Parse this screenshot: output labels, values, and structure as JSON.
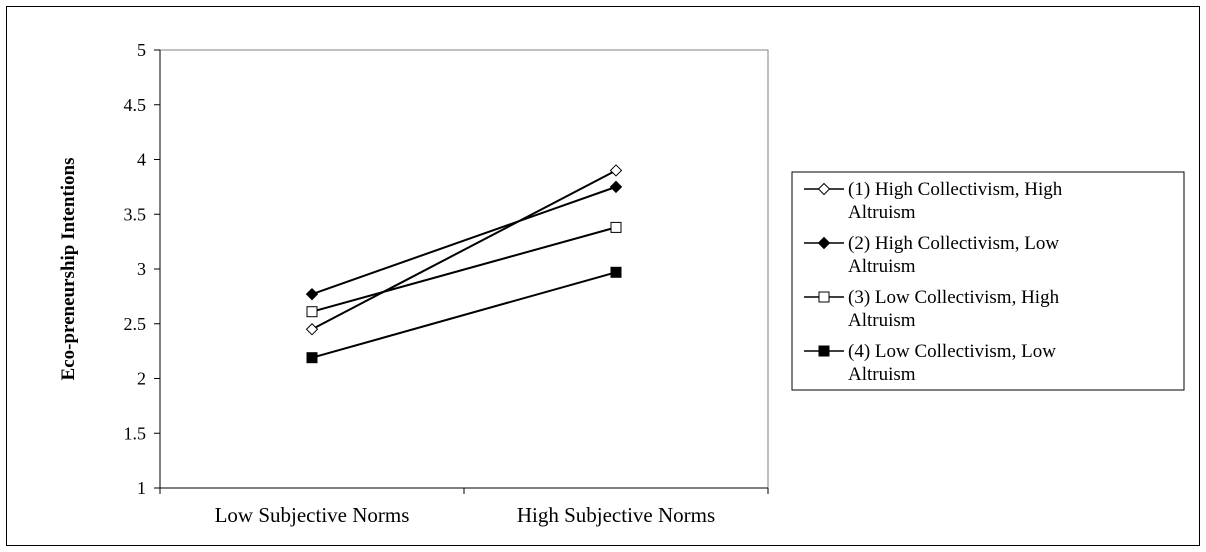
{
  "chart_data": {
    "type": "line",
    "title": "",
    "xlabel": "",
    "ylabel": "Eco-preneurship Intentions",
    "categories": [
      "Low Subjective Norms",
      "High Subjective Norms"
    ],
    "ylim": [
      1,
      5
    ],
    "yticks": [
      "1",
      "1.5",
      "2",
      "2.5",
      "3",
      "3.5",
      "4",
      "4.5",
      "5"
    ],
    "grid": false,
    "legend_position": "right",
    "series": [
      {
        "name": "(1) High Collectivism, High Altruism",
        "name_lines": [
          "(1) High Collectivism, High",
          "Altruism"
        ],
        "marker": "diamond-open",
        "values": [
          2.45,
          3.9
        ]
      },
      {
        "name": "(2) High Collectivism, Low Altruism",
        "name_lines": [
          "(2) High Collectivism, Low",
          "Altruism"
        ],
        "marker": "diamond-filled",
        "values": [
          2.77,
          3.75
        ]
      },
      {
        "name": "(3) Low Collectivism, High Altruism",
        "name_lines": [
          "(3) Low Collectivism, High",
          "Altruism"
        ],
        "marker": "square-open",
        "values": [
          2.61,
          3.38
        ]
      },
      {
        "name": "(4) Low Collectivism, Low Altruism",
        "name_lines": [
          "(4) Low Collectivism, Low",
          "Altruism"
        ],
        "marker": "square-filled",
        "values": [
          2.19,
          2.97
        ]
      }
    ],
    "colors": {
      "line": "#000000",
      "background": "#ffffff"
    }
  }
}
